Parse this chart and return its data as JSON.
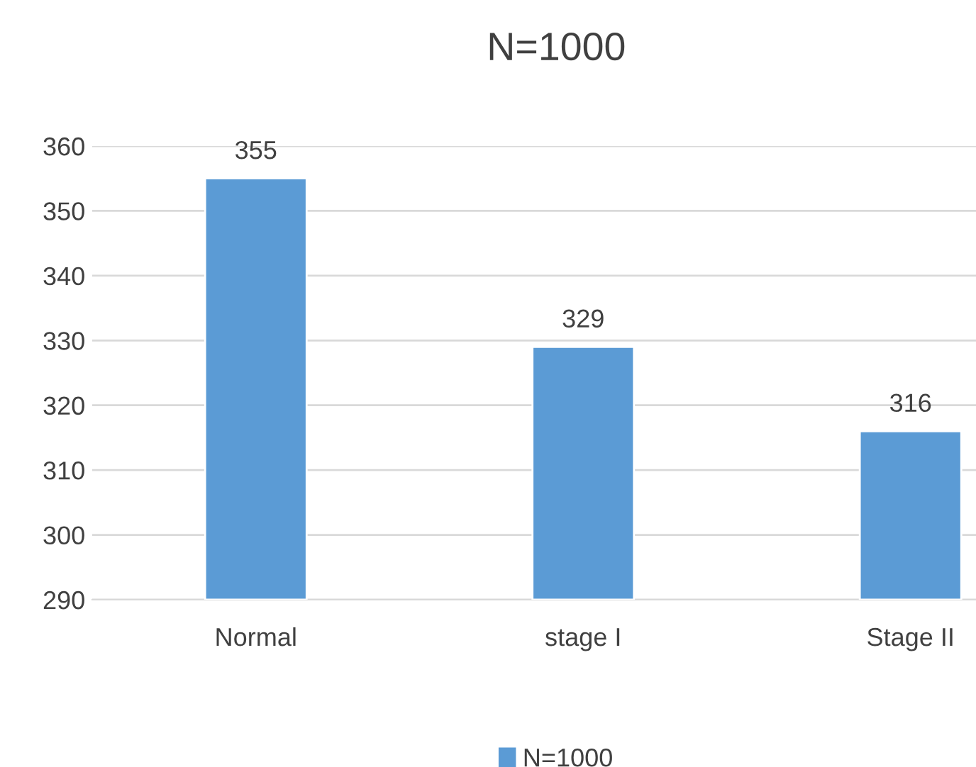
{
  "chart_data": {
    "type": "bar",
    "title": "N=1000",
    "categories": [
      "Normal",
      "stage I",
      "Stage II"
    ],
    "series": [
      {
        "name": "N=1000",
        "color": "#5b9bd5",
        "values": [
          355,
          329,
          316
        ]
      }
    ],
    "ylim": [
      290,
      360
    ],
    "yticks": [
      290,
      300,
      310,
      320,
      330,
      340,
      350,
      360
    ],
    "grid": "y",
    "legend": "bottom",
    "data_labels": true
  }
}
